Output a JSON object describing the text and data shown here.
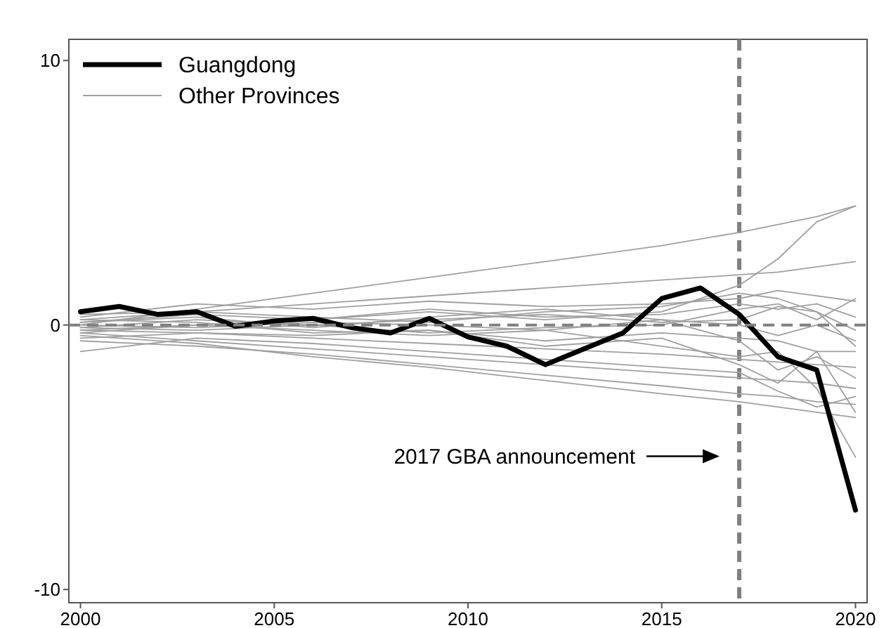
{
  "chart_data": {
    "type": "line",
    "x": [
      2000,
      2001,
      2002,
      2003,
      2004,
      2005,
      2006,
      2007,
      2008,
      2009,
      2010,
      2011,
      2012,
      2013,
      2014,
      2015,
      2016,
      2017,
      2018,
      2019,
      2020
    ],
    "series": [
      {
        "name": "Guangdong",
        "color": "#000000",
        "values": [
          0.5,
          0.7,
          0.4,
          0.5,
          -0.05,
          0.15,
          0.25,
          -0.1,
          -0.3,
          0.25,
          -0.45,
          -0.8,
          -1.5,
          -0.9,
          -0.3,
          1.0,
          1.4,
          0.4,
          -1.2,
          -1.7,
          -7.0
        ]
      },
      {
        "name": "Other Provinces",
        "color": "#a0a0a0",
        "x": [
          2000,
          2003,
          2006,
          2009,
          2012,
          2015,
          2017,
          2018,
          2019,
          2020
        ],
        "values": [
          0,
          0.6,
          1.2,
          1.8,
          2.4,
          3.0,
          3.5,
          3.8,
          4.1,
          4.5
        ]
      },
      {
        "color": "#a0a0a0",
        "x": [
          2000,
          2003,
          2006,
          2009,
          2012,
          2015,
          2017,
          2018,
          2019,
          2020
        ],
        "values": [
          0.2,
          0.5,
          0.8,
          1.1,
          1.4,
          1.7,
          1.9,
          2.0,
          2.2,
          2.4
        ]
      },
      {
        "color": "#a0a0a0",
        "x": [
          2000,
          2003,
          2006,
          2009,
          2012,
          2015,
          2017,
          2018,
          2019,
          2020
        ],
        "values": [
          -0.3,
          0,
          0.2,
          0.5,
          0.2,
          0.5,
          1.5,
          2.5,
          3.9,
          4.5
        ]
      },
      {
        "color": "#a0a0a0",
        "x": [
          2000,
          2003,
          2006,
          2009,
          2012,
          2015,
          2017,
          2018,
          2019,
          2020
        ],
        "values": [
          0.3,
          0.8,
          0.6,
          0.9,
          0.7,
          0.8,
          1.0,
          1.3,
          1.1,
          0.9
        ]
      },
      {
        "color": "#a0a0a0",
        "x": [
          2000,
          2003,
          2006,
          2009,
          2012,
          2015,
          2017,
          2018,
          2019,
          2020
        ],
        "values": [
          0.1,
          0.4,
          0.2,
          0.6,
          0.3,
          0.4,
          0.8,
          0.6,
          0.8,
          0.3
        ]
      },
      {
        "color": "#a0a0a0",
        "x": [
          2000,
          2003,
          2006,
          2009,
          2012,
          2015,
          2017,
          2018,
          2019,
          2020
        ],
        "values": [
          -0.1,
          0.2,
          0.0,
          0.2,
          0.4,
          0.1,
          0.2,
          0.7,
          0.5,
          -0.2
        ]
      },
      {
        "color": "#a0a0a0",
        "x": [
          2000,
          2003,
          2006,
          2009,
          2012,
          2015,
          2017,
          2018,
          2019,
          2020
        ],
        "values": [
          0.0,
          -0.1,
          0.1,
          0.0,
          -0.2,
          0.2,
          0.0,
          -0.4,
          0.0,
          -0.6
        ]
      },
      {
        "color": "#a0a0a0",
        "x": [
          2000,
          2003,
          2006,
          2009,
          2012,
          2015,
          2017,
          2018,
          2019,
          2020
        ],
        "values": [
          -0.2,
          -0.3,
          -0.4,
          -0.2,
          -0.6,
          -0.3,
          -0.5,
          -0.6,
          -1.0,
          -1.0
        ]
      },
      {
        "color": "#a0a0a0",
        "x": [
          2000,
          2003,
          2006,
          2009,
          2012,
          2015,
          2017,
          2018,
          2019,
          2020
        ],
        "values": [
          -0.5,
          -0.3,
          -0.5,
          -0.7,
          -0.9,
          -1.1,
          -1.3,
          -1.4,
          -1.5,
          -1.6
        ]
      },
      {
        "color": "#a0a0a0",
        "x": [
          2000,
          2003,
          2006,
          2009,
          2012,
          2015,
          2017,
          2018,
          2019,
          2020
        ],
        "values": [
          -0.3,
          -0.6,
          -0.9,
          -1.2,
          -1.5,
          -1.8,
          -2.0,
          -2.1,
          -2.2,
          -2.4
        ]
      },
      {
        "color": "#a0a0a0",
        "x": [
          2000,
          2003,
          2006,
          2009,
          2012,
          2015,
          2017,
          2018,
          2019,
          2020
        ],
        "values": [
          -0.6,
          -0.8,
          -1.1,
          -1.5,
          -1.9,
          -2.3,
          -2.6,
          -2.7,
          -2.9,
          -3.0
        ]
      },
      {
        "color": "#a0a0a0",
        "x": [
          2000,
          2003,
          2006,
          2009,
          2012,
          2015,
          2017,
          2018,
          2019,
          2020
        ],
        "values": [
          -1.0,
          -0.5,
          -0.7,
          -1.0,
          -1.3,
          -1.6,
          -1.8,
          -2.5,
          -3.1,
          -2.7
        ]
      },
      {
        "color": "#a0a0a0",
        "x": [
          2000,
          2003,
          2006,
          2009,
          2012,
          2015,
          2017,
          2018,
          2019,
          2020
        ],
        "values": [
          -0.4,
          -0.7,
          -1.2,
          -1.6,
          -2.1,
          -2.6,
          -2.9,
          -3.1,
          -3.3,
          -3.5
        ]
      },
      {
        "color": "#a0a0a0",
        "x": [
          2000,
          2003,
          2006,
          2009,
          2012,
          2015,
          2017,
          2018,
          2019,
          2020
        ],
        "values": [
          0.2,
          0.1,
          -0.3,
          -0.2,
          -0.8,
          -0.5,
          -1.5,
          -2.2,
          -1.0,
          -3.3
        ]
      },
      {
        "color": "#a0a0a0",
        "x": [
          2000,
          2003,
          2006,
          2009,
          2012,
          2015,
          2017,
          2018,
          2019,
          2020
        ],
        "values": [
          0.1,
          0.3,
          -0.1,
          0.3,
          0.6,
          0.2,
          -0.6,
          -1.7,
          -1.2,
          -2.0
        ]
      },
      {
        "color": "#a0a0a0",
        "x": [
          2000,
          2003,
          2006,
          2009,
          2012,
          2015,
          2017,
          2018,
          2019,
          2020
        ],
        "values": [
          -0.2,
          0.0,
          -0.2,
          -0.4,
          -0.2,
          -0.8,
          -1.2,
          -1.0,
          -2.4,
          -5.0
        ]
      },
      {
        "color": "#a0a0a0",
        "x": [
          2000,
          2003,
          2006,
          2009,
          2012,
          2015,
          2017,
          2018,
          2019,
          2020
        ],
        "values": [
          0.4,
          0.5,
          0.3,
          0.1,
          0.5,
          0.7,
          1.2,
          1.0,
          0.5,
          -0.8
        ]
      },
      {
        "color": "#a0a0a0",
        "x": [
          2000,
          2003,
          2006,
          2009,
          2012,
          2015,
          2017,
          2018,
          2019,
          2020
        ],
        "values": [
          -0.1,
          -0.2,
          0.0,
          -0.3,
          -0.1,
          0.0,
          0.6,
          0.8,
          0.2,
          1.0
        ]
      }
    ],
    "xlim": [
      1999.7,
      2020.3
    ],
    "xticks": [
      2000,
      2005,
      2010,
      2015,
      2020
    ],
    "ylim": [
      -10.5,
      10.8
    ],
    "yticks": [
      -10,
      0,
      10
    ],
    "ref_lines": [
      {
        "axis": "y",
        "value": 0,
        "color": "#808080",
        "line_style": "dashed"
      },
      {
        "axis": "x",
        "value": 2017,
        "color": "#808080",
        "line_style": "dashed"
      }
    ],
    "annotations": [
      "2017 GBA announcement"
    ],
    "legend": "top left",
    "grid": false,
    "line_style": "solid",
    "marker": "none"
  }
}
